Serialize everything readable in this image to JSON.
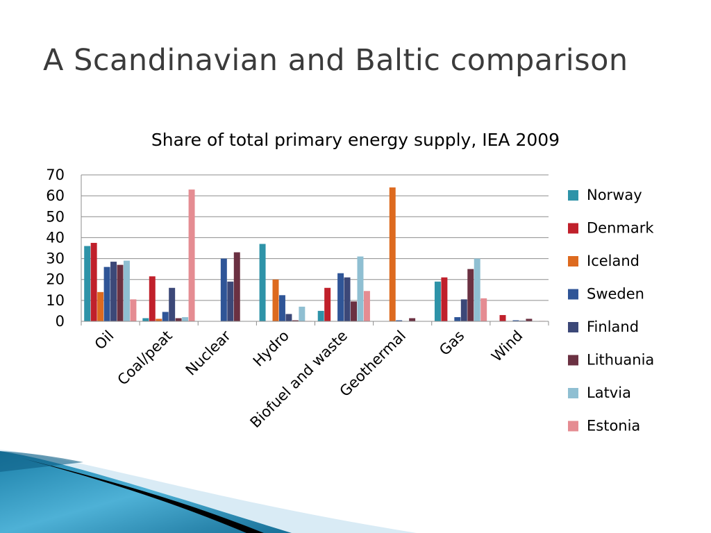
{
  "slide": {
    "title": "A Scandinavian and Baltic comparison"
  },
  "chart_data": {
    "type": "bar",
    "title": "Share of total primary energy supply, IEA 2009",
    "xlabel": "",
    "ylabel": "",
    "ylim": [
      0,
      70
    ],
    "yticks": [
      0,
      10,
      20,
      30,
      40,
      50,
      60,
      70
    ],
    "grid": true,
    "legend_position": "right",
    "categories": [
      "Oil",
      "Coal/peat",
      "Nuclear",
      "Hydro",
      "Biofuel and waste",
      "Geothermal",
      "Gas",
      "Wind"
    ],
    "series": [
      {
        "name": "Norway",
        "color": "#2e93a8",
        "values": [
          36,
          1.5,
          0,
          37,
          5,
          0,
          19,
          0
        ]
      },
      {
        "name": "Denmark",
        "color": "#c0202b",
        "values": [
          37.5,
          21.5,
          0,
          0,
          16,
          0,
          21,
          3
        ]
      },
      {
        "name": "Iceland",
        "color": "#dd6a1f",
        "values": [
          14,
          1.2,
          0,
          20,
          0,
          64,
          0,
          0
        ]
      },
      {
        "name": "Sweden",
        "color": "#2f5597",
        "values": [
          26,
          4.5,
          30,
          12.5,
          23,
          0.5,
          2,
          0.5
        ]
      },
      {
        "name": "Finland",
        "color": "#3c4878",
        "values": [
          28.5,
          16,
          19,
          3.5,
          21,
          0,
          10.5,
          0.3
        ]
      },
      {
        "name": "Lithuania",
        "color": "#6b3142",
        "values": [
          27,
          1.5,
          33,
          0.5,
          9.5,
          1.5,
          25,
          1.2
        ]
      },
      {
        "name": "Latvia",
        "color": "#8fbfd2",
        "values": [
          29,
          2,
          0,
          7,
          31,
          0,
          30,
          0
        ]
      },
      {
        "name": "Estonia",
        "color": "#e58c92",
        "values": [
          10.5,
          63,
          0,
          0.2,
          14.5,
          0,
          11,
          0.2
        ]
      }
    ]
  }
}
